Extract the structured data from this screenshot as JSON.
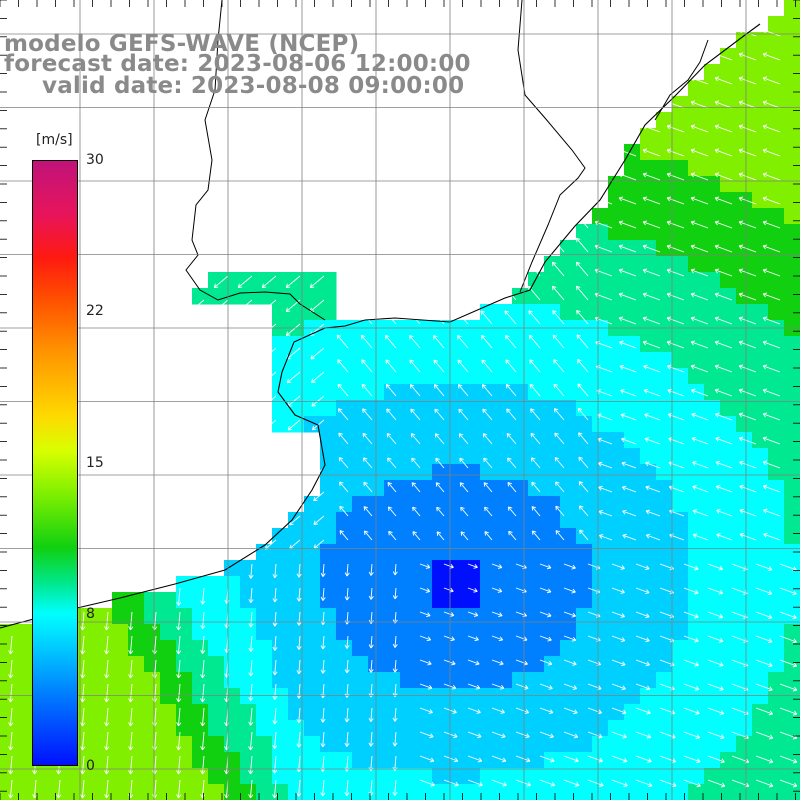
{
  "title": {
    "line1": "modelo GEFS-WAVE (NCEP)",
    "line2": "forecast date: 2023-08-06 12:00:00",
    "line3": "valid date: 2023-08-08 09:00:00"
  },
  "colorbar": {
    "unit": "[m/s]",
    "min": 0,
    "max": 30,
    "ticks": [
      {
        "label": "30",
        "value": 30
      },
      {
        "label": "22",
        "value": 22
      },
      {
        "label": "15",
        "value": 15
      },
      {
        "label": "8",
        "value": 8
      },
      {
        "label": "0",
        "value": 0
      }
    ]
  },
  "map": {
    "variable": "wind speed with direction arrows",
    "land_color": "#ffffff",
    "grid": true,
    "palette": [
      "#0010ff",
      "#0080ff",
      "#00d0ff",
      "#00ffff",
      "#00e890",
      "#10d010",
      "#80f000"
    ]
  }
}
